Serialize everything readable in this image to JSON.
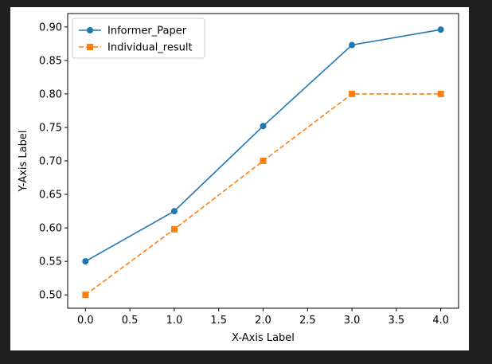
{
  "colors": {
    "background": "#202020",
    "figure": "#ffffff",
    "series_blue": "#1f77b4",
    "series_orange": "#ff7f0e"
  },
  "chart_data": {
    "type": "line",
    "title": "",
    "xlabel": "X-Axis Label",
    "ylabel": "Y-Axis Label",
    "xlim": [
      -0.2,
      4.2
    ],
    "ylim": [
      0.48,
      0.92
    ],
    "xticks": [
      0.0,
      0.5,
      1.0,
      1.5,
      2.0,
      2.5,
      3.0,
      3.5,
      4.0
    ],
    "xtick_labels": [
      "0.0",
      "0.5",
      "1.0",
      "1.5",
      "2.0",
      "2.5",
      "3.0",
      "3.5",
      "4.0"
    ],
    "yticks": [
      0.5,
      0.55,
      0.6,
      0.65,
      0.7,
      0.75,
      0.8,
      0.85,
      0.9
    ],
    "ytick_labels": [
      "0.50",
      "0.55",
      "0.60",
      "0.65",
      "0.70",
      "0.75",
      "0.80",
      "0.85",
      "0.90"
    ],
    "grid": false,
    "legend_position": "top-left",
    "x": [
      0,
      1,
      2,
      3,
      4
    ],
    "series": [
      {
        "name": "Informer_Paper",
        "values": [
          0.55,
          0.625,
          0.752,
          0.873,
          0.896
        ],
        "color": "#1f77b4",
        "linestyle": "solid",
        "marker": "circle"
      },
      {
        "name": "Individual_result",
        "values": [
          0.5,
          0.598,
          0.7,
          0.8,
          0.8
        ],
        "color": "#ff7f0e",
        "linestyle": "dashed",
        "marker": "square"
      }
    ]
  }
}
